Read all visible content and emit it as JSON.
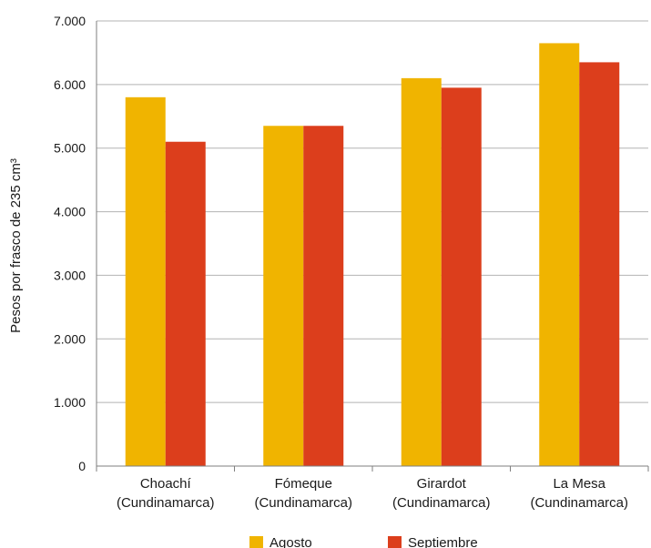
{
  "chart_data": {
    "type": "bar",
    "title": "",
    "xlabel": "",
    "ylabel": "Pesos por frasco de 235 cm³",
    "categories": [
      [
        "Choachí",
        "(Cundinamarca)"
      ],
      [
        "Fómeque",
        "(Cundinamarca)"
      ],
      [
        "Girardot",
        "(Cundinamarca)"
      ],
      [
        "La Mesa",
        "(Cundinamarca)"
      ]
    ],
    "series": [
      {
        "name": "Agosto",
        "color": "#f0b400",
        "values": [
          5800,
          5350,
          6100,
          6650
        ]
      },
      {
        "name": "Septiembre",
        "color": "#dc3e1c",
        "values": [
          5100,
          5350,
          5950,
          6350
        ]
      }
    ],
    "ylim": [
      0,
      7000
    ],
    "yticks": [
      0,
      1000,
      2000,
      3000,
      4000,
      5000,
      6000,
      7000
    ],
    "ytick_labels": [
      "0",
      "1.000",
      "2.000",
      "3.000",
      "4.000",
      "5.000",
      "6.000",
      "7.000"
    ],
    "grid": true,
    "legend_position": "bottom-center"
  }
}
